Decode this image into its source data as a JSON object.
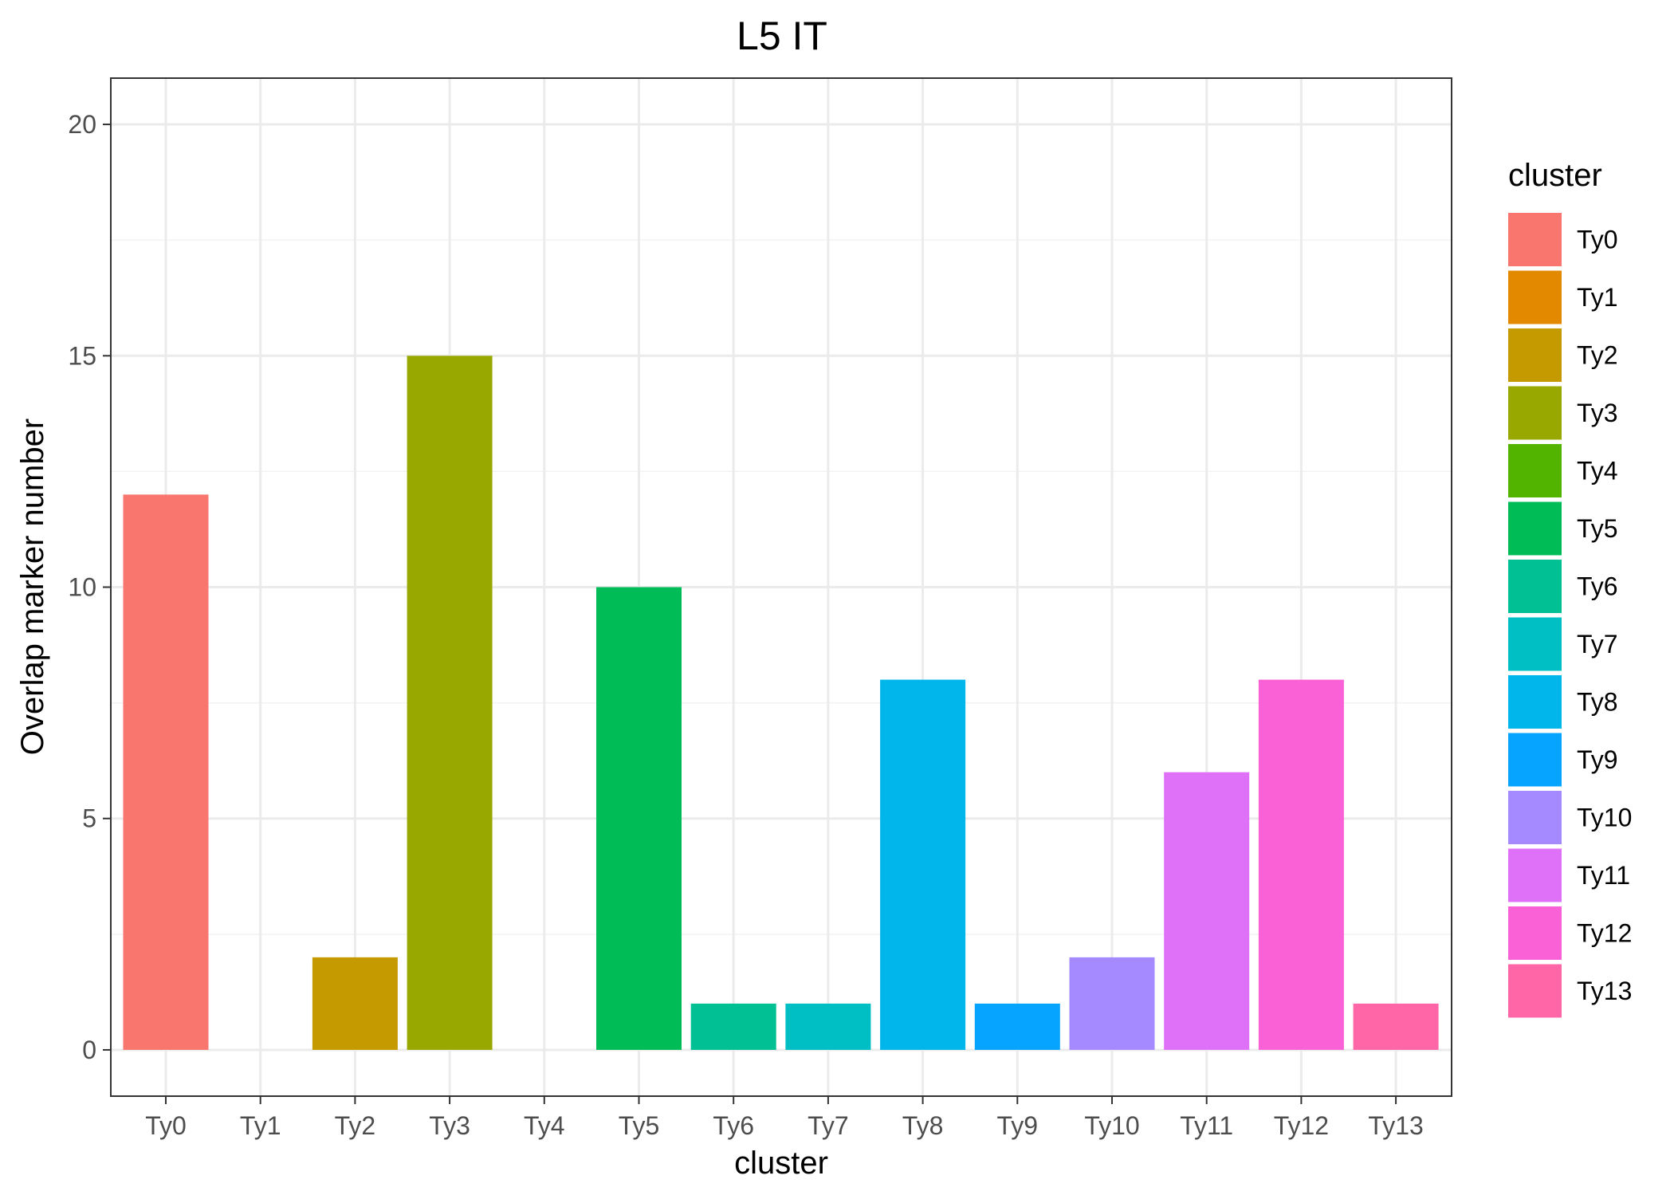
{
  "chart_data": {
    "type": "bar",
    "title": "L5 IT",
    "xlabel": "cluster",
    "ylabel": "Overlap marker number",
    "categories": [
      "Ty0",
      "Ty1",
      "Ty2",
      "Ty3",
      "Ty4",
      "Ty5",
      "Ty6",
      "Ty7",
      "Ty8",
      "Ty9",
      "Ty10",
      "Ty11",
      "Ty12",
      "Ty13"
    ],
    "values": [
      12,
      0,
      2,
      15,
      0,
      10,
      1,
      1,
      8,
      1,
      2,
      6,
      8,
      1
    ],
    "colors": [
      "#F8766D",
      "#E38900",
      "#C49A00",
      "#99A800",
      "#53B400",
      "#00BC56",
      "#00C094",
      "#00BFC4",
      "#00B6EB",
      "#06A4FF",
      "#A58AFF",
      "#DF70F8",
      "#FB61D7",
      "#FF66A8"
    ],
    "ylim": [
      -1,
      21
    ],
    "yticks": [
      0,
      5,
      10,
      15,
      20
    ],
    "grid": true,
    "legend": {
      "title": "cluster",
      "position": "right",
      "entries": [
        "Ty0",
        "Ty1",
        "Ty2",
        "Ty3",
        "Ty4",
        "Ty5",
        "Ty6",
        "Ty7",
        "Ty8",
        "Ty9",
        "Ty10",
        "Ty11",
        "Ty12",
        "Ty13"
      ]
    }
  }
}
